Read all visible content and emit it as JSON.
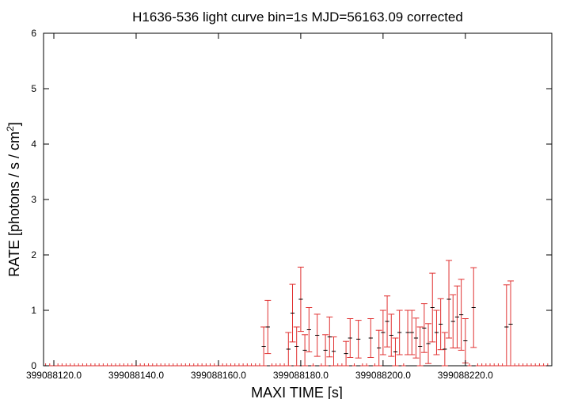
{
  "chart_data": {
    "type": "line",
    "title": "H1636-536 light curve bin=1s MJD=56163.09 corrected",
    "xlabel": "MAXI TIME [s]",
    "ylabel": "RATE [photons / s / cm",
    "ylabel_sup": "2",
    "ylabel_close": "]",
    "xlim": [
      399088117.5,
      399088241.0
    ],
    "ylim": [
      0,
      6
    ],
    "x_ticks": [
      399088120,
      399088140,
      399088160,
      399088180,
      399088200,
      399088220
    ],
    "x_tick_labels": [
      "399088120.0",
      "399088140.0",
      "399088160.0",
      "399088180.0",
      "399088200.0",
      "399088220.0"
    ],
    "y_ticks": [
      0,
      1,
      2,
      3,
      4,
      5,
      6
    ],
    "y_tick_labels": [
      "0",
      "1",
      "2",
      "3",
      "4",
      "5",
      "6"
    ],
    "grid": false,
    "line_color": "#000000",
    "error_color": "#e03030",
    "series": [
      {
        "x": [
          399088118.0,
          399088119.0,
          399088120.0,
          399088121.0,
          399088122.0,
          399088123.0,
          399088124.0,
          399088125.0,
          399088126.0,
          399088127.0,
          399088128.0,
          399088129.0,
          399088130.0,
          399088131.0,
          399088132.0,
          399088133.0,
          399088134.0,
          399088135.0,
          399088136.0,
          399088137.0,
          399088138.0,
          399088139.0,
          399088140.0,
          399088141.0,
          399088142.0,
          399088143.0,
          399088144.0,
          399088145.0,
          399088146.0,
          399088147.0,
          399088148.0,
          399088149.0,
          399088150.0,
          399088151.0,
          399088152.0,
          399088153.0,
          399088154.0,
          399088155.0,
          399088156.0,
          399088157.0,
          399088158.0,
          399088159.0,
          399088160.0,
          399088161.0,
          399088162.0,
          399088163.0,
          399088164.0,
          399088165.0,
          399088166.0,
          399088167.0,
          399088168.0,
          399088169.0,
          399088170.0,
          399088171.0,
          399088172.0,
          399088173.0,
          399088174.0,
          399088175.0,
          399088176.0,
          399088177.0,
          399088178.0,
          399088179.0,
          399088180.0,
          399088181.0,
          399088182.0,
          399088183.0,
          399088184.0,
          399088185.0,
          399088186.0,
          399088187.0,
          399088188.0,
          399088189.0,
          399088190.0,
          399088191.0,
          399088192.0,
          399088193.0,
          399088194.0,
          399088195.0,
          399088196.0,
          399088197.0,
          399088198.0,
          399088199.0,
          399088200.0,
          399088201.0,
          399088202.0,
          399088203.0,
          399088204.0,
          399088205.0,
          399088206.0,
          399088207.0,
          399088208.0,
          399088209.0,
          399088210.0,
          399088211.0,
          399088212.0,
          399088213.0,
          399088214.0,
          399088215.0,
          399088216.0,
          399088217.0,
          399088218.0,
          399088219.0,
          399088220.0,
          399088221.0,
          399088222.0,
          399088223.0,
          399088224.0,
          399088225.0,
          399088226.0,
          399088227.0,
          399088228.0,
          399088229.0,
          399088230.0,
          399088231.0,
          399088232.0,
          399088233.0,
          399088234.0,
          399088235.0,
          399088236.0,
          399088237.0,
          399088238.0,
          399088239.0,
          399088240.0
        ],
        "y": [
          0,
          0,
          0,
          0,
          0,
          0,
          0,
          0,
          0,
          0,
          0,
          0,
          0,
          0,
          0,
          0,
          0,
          0,
          0,
          0,
          0,
          0,
          0,
          0,
          0,
          0,
          0,
          0,
          0,
          0,
          0,
          0,
          0,
          0,
          0,
          0,
          0,
          0,
          0,
          0,
          0,
          0,
          0,
          0,
          0,
          0,
          0,
          0,
          0,
          0,
          0,
          0,
          0,
          0.35,
          0.7,
          0,
          0,
          0,
          0,
          0.3,
          0.95,
          0.35,
          1.2,
          0.28,
          0.65,
          0,
          0.55,
          0,
          0.28,
          0.52,
          0.26,
          0,
          0,
          0.22,
          0.5,
          0,
          0.48,
          0,
          0,
          0.5,
          0,
          0.32,
          0.6,
          0.8,
          0.55,
          0.25,
          0.6,
          0,
          0.6,
          0.6,
          0.5,
          0.35,
          0.68,
          0.4,
          1.05,
          0.6,
          0.75,
          0.3,
          1.2,
          0.8,
          0.88,
          0.92,
          0.45,
          0,
          1.05,
          0,
          0,
          0,
          0,
          0,
          0,
          0,
          0.7,
          0.75,
          0,
          0,
          0,
          0,
          0,
          0,
          0,
          0,
          0
        ],
        "err": [
          0,
          0,
          0,
          0,
          0,
          0,
          0,
          0,
          0,
          0,
          0,
          0,
          0,
          0,
          0,
          0,
          0,
          0,
          0,
          0,
          0,
          0,
          0,
          0,
          0,
          0,
          0,
          0,
          0,
          0,
          0,
          0,
          0,
          0,
          0,
          0,
          0,
          0,
          0,
          0,
          0,
          0,
          0,
          0,
          0,
          0,
          0,
          0,
          0,
          0,
          0,
          0,
          0,
          0.35,
          0.48,
          0,
          0,
          0,
          0,
          0.3,
          0.52,
          0.35,
          0.58,
          0.28,
          0.4,
          0,
          0.38,
          0,
          0.28,
          0.36,
          0.26,
          0,
          0,
          0.22,
          0.35,
          0,
          0.34,
          0,
          0,
          0.35,
          0,
          0.32,
          0.4,
          0.46,
          0.38,
          0.25,
          0.4,
          0,
          0.4,
          0.4,
          0.36,
          0.35,
          0.44,
          0.36,
          0.62,
          0.4,
          0.46,
          0.3,
          0.7,
          0.48,
          0.56,
          0.64,
          0.4,
          0,
          0.72,
          0,
          0,
          0,
          0,
          0,
          0,
          0,
          0.76,
          0.78,
          0,
          0,
          0,
          0,
          0,
          0,
          0,
          0,
          0
        ]
      }
    ]
  }
}
